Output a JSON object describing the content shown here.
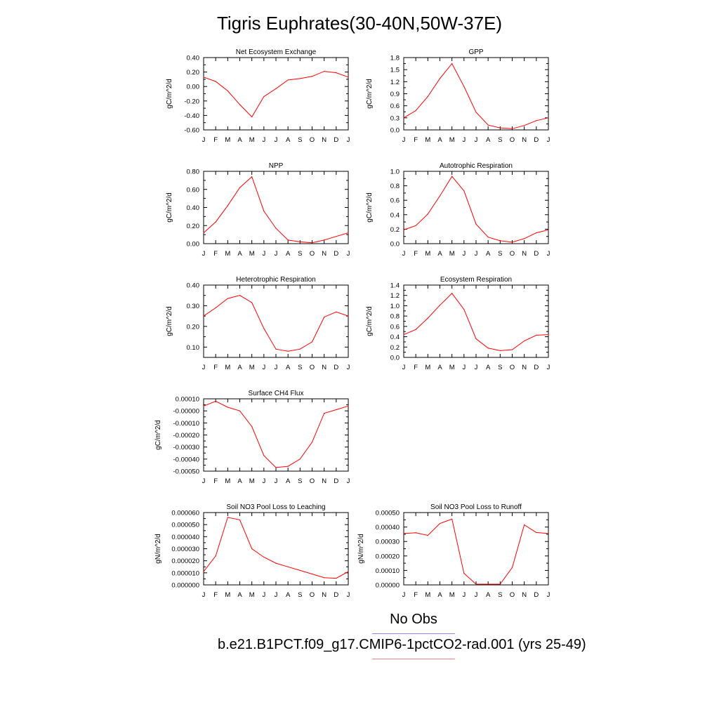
{
  "title": "Tigris Euphrates(30-40N,50W-37E)",
  "line_color": "#ff0000",
  "legend": {
    "obs_label": "No Obs",
    "obs_color": "#8888ee",
    "case_label": "b.e21.B1PCT.f09_g17.CMIP6-1pctCO2-rad.001 (yrs 25-49)",
    "case_color": "#ee8888"
  },
  "chart_data": [
    {
      "type": "line",
      "title": "Net Ecosystem Exchange",
      "ylabel": "gC/m^2/d",
      "ylim": [
        -0.6,
        0.4
      ],
      "yticks": [
        -0.6,
        -0.4,
        -0.2,
        0.0,
        0.2,
        0.4
      ],
      "ytick_labels": [
        "-0.60",
        "-0.40",
        "-0.20",
        "0.00",
        "0.20",
        "0.40"
      ],
      "x": [
        "J",
        "F",
        "M",
        "A",
        "M",
        "J",
        "J",
        "A",
        "S",
        "O",
        "N",
        "D",
        "J"
      ],
      "values": [
        0.13,
        0.07,
        -0.06,
        -0.25,
        -0.42,
        -0.14,
        -0.03,
        0.09,
        0.11,
        0.14,
        0.21,
        0.19,
        0.13
      ]
    },
    {
      "type": "line",
      "title": "GPP",
      "ylabel": "gC/m^2/d",
      "ylim": [
        0.0,
        1.8
      ],
      "yticks": [
        0.0,
        0.3,
        0.6,
        0.9,
        1.2,
        1.5,
        1.8
      ],
      "ytick_labels": [
        "0.0",
        "0.3",
        "0.6",
        "0.9",
        "1.2",
        "1.5",
        "1.8"
      ],
      "x": [
        "J",
        "F",
        "M",
        "A",
        "M",
        "J",
        "J",
        "A",
        "S",
        "O",
        "N",
        "D",
        "J"
      ],
      "values": [
        0.3,
        0.48,
        0.83,
        1.28,
        1.65,
        1.08,
        0.44,
        0.12,
        0.05,
        0.03,
        0.11,
        0.23,
        0.3
      ]
    },
    {
      "type": "line",
      "title": "NPP",
      "ylabel": "gC/m^2/d",
      "ylim": [
        0.0,
        0.8
      ],
      "yticks": [
        0.0,
        0.2,
        0.4,
        0.6,
        0.8
      ],
      "ytick_labels": [
        "0.00",
        "0.20",
        "0.40",
        "0.60",
        "0.80"
      ],
      "x": [
        "J",
        "F",
        "M",
        "A",
        "M",
        "J",
        "J",
        "A",
        "S",
        "O",
        "N",
        "D",
        "J"
      ],
      "values": [
        0.12,
        0.24,
        0.42,
        0.62,
        0.74,
        0.36,
        0.17,
        0.04,
        0.02,
        0.01,
        0.04,
        0.08,
        0.12
      ]
    },
    {
      "type": "line",
      "title": "Autotrophic Respiration",
      "ylabel": "gC/m^2/d",
      "ylim": [
        0.0,
        1.0
      ],
      "yticks": [
        0.0,
        0.2,
        0.4,
        0.6,
        0.8,
        1.0
      ],
      "ytick_labels": [
        "0.0",
        "0.2",
        "0.4",
        "0.6",
        "0.8",
        "1.0"
      ],
      "x": [
        "J",
        "F",
        "M",
        "A",
        "M",
        "J",
        "J",
        "A",
        "S",
        "O",
        "N",
        "D",
        "J"
      ],
      "values": [
        0.19,
        0.25,
        0.41,
        0.66,
        0.93,
        0.73,
        0.27,
        0.09,
        0.04,
        0.02,
        0.07,
        0.15,
        0.19
      ]
    },
    {
      "type": "line",
      "title": "Heterotrophic Respiration",
      "ylabel": "gC/m^2/d",
      "ylim": [
        0.05,
        0.4
      ],
      "yticks": [
        0.1,
        0.2,
        0.3,
        0.4
      ],
      "ytick_labels": [
        "0.10",
        "0.20",
        "0.30",
        "0.40"
      ],
      "x": [
        "J",
        "F",
        "M",
        "A",
        "M",
        "J",
        "J",
        "A",
        "S",
        "O",
        "N",
        "D",
        "J"
      ],
      "values": [
        0.25,
        0.29,
        0.335,
        0.35,
        0.315,
        0.19,
        0.09,
        0.08,
        0.09,
        0.125,
        0.245,
        0.27,
        0.25
      ]
    },
    {
      "type": "line",
      "title": "Ecosystem Respiration",
      "ylabel": "gC/m^2/d",
      "ylim": [
        0.0,
        1.4
      ],
      "yticks": [
        0.0,
        0.2,
        0.4,
        0.6,
        0.8,
        1.0,
        1.2,
        1.4
      ],
      "ytick_labels": [
        "0.0",
        "0.2",
        "0.4",
        "0.6",
        "0.8",
        "1.0",
        "1.2",
        "1.4"
      ],
      "x": [
        "J",
        "F",
        "M",
        "A",
        "M",
        "J",
        "J",
        "A",
        "S",
        "O",
        "N",
        "D",
        "J"
      ],
      "values": [
        0.44,
        0.54,
        0.76,
        1.01,
        1.24,
        0.93,
        0.36,
        0.18,
        0.13,
        0.15,
        0.32,
        0.43,
        0.44
      ]
    },
    {
      "type": "line",
      "title": "Surface CH4 Flux",
      "ylabel": "gC/m^2/d",
      "ylim": [
        -0.0005,
        0.0001
      ],
      "yticks": [
        -0.0005,
        -0.0004,
        -0.0003,
        -0.0002,
        -0.0001,
        0.0,
        0.0001
      ],
      "ytick_labels": [
        "-0.00050",
        "-0.00040",
        "-0.00030",
        "-0.00020",
        "-0.00010",
        "-0.00000",
        "0.00010"
      ],
      "x": [
        "J",
        "F",
        "M",
        "A",
        "M",
        "J",
        "J",
        "A",
        "S",
        "O",
        "N",
        "D",
        "J"
      ],
      "values": [
        4e-05,
        8e-05,
        3e-05,
        0.0,
        -0.00013,
        -0.00037,
        -0.00047,
        -0.00046,
        -0.0004,
        -0.00026,
        -2e-05,
        1e-05,
        4e-05
      ]
    },
    {
      "type": "line",
      "title": "Soil NO3 Pool Loss to Leaching",
      "ylabel": "gN/m^2/d",
      "ylim": [
        0.0,
        6e-05
      ],
      "yticks": [
        0.0,
        1e-05,
        2e-05,
        3e-05,
        4e-05,
        5e-05,
        6e-05
      ],
      "ytick_labels": [
        "0.000000",
        "0.000010",
        "0.000020",
        "0.000030",
        "0.000040",
        "0.000050",
        "0.000060"
      ],
      "x": [
        "J",
        "F",
        "M",
        "A",
        "M",
        "J",
        "J",
        "A",
        "S",
        "O",
        "N",
        "D",
        "J"
      ],
      "values": [
        1.1e-05,
        2.4e-05,
        5.6e-05,
        5.4e-05,
        3e-05,
        2.3e-05,
        1.8e-05,
        1.5e-05,
        1.2e-05,
        9e-06,
        6e-06,
        5.5e-06,
        1.1e-05
      ]
    },
    {
      "type": "line",
      "title": "Soil NO3 Pool Loss to Runoff",
      "ylabel": "gN/m^2/d",
      "ylim": [
        0.0,
        0.0005
      ],
      "yticks": [
        0.0,
        0.0001,
        0.0002,
        0.0003,
        0.0004,
        0.0005
      ],
      "ytick_labels": [
        "0.00000",
        "0.00010",
        "0.00020",
        "0.00030",
        "0.00040",
        "0.00050"
      ],
      "x": [
        "J",
        "F",
        "M",
        "A",
        "M",
        "J",
        "J",
        "A",
        "S",
        "O",
        "N",
        "D",
        "J"
      ],
      "values": [
        0.000355,
        0.00036,
        0.000342,
        0.000425,
        0.000455,
        8e-05,
        5e-06,
        5e-06,
        5e-06,
        0.00012,
        0.000415,
        0.000362,
        0.000355
      ]
    }
  ]
}
